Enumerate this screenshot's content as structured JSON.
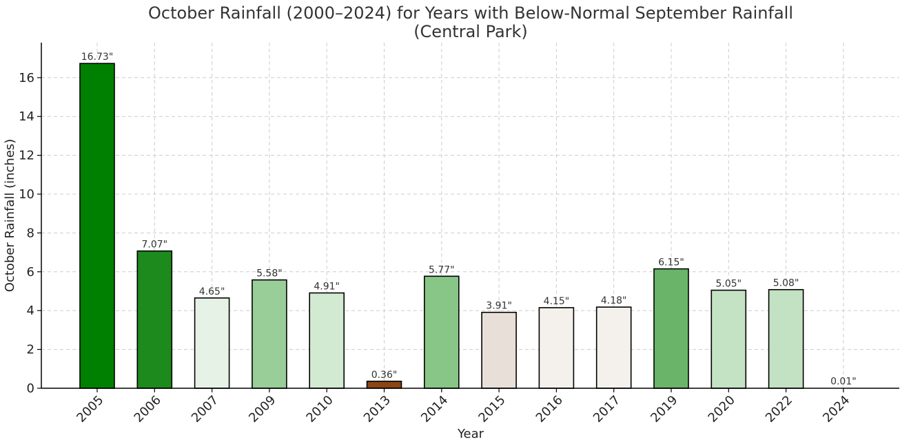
{
  "chart_data": {
    "type": "bar",
    "title": "October Rainfall (2000–2024) for Years with Below-Normal September Rainfall",
    "subtitle": "(Central Park)",
    "xlabel": "Year",
    "ylabel": "October Rainfall (inches)",
    "categories": [
      "2005",
      "2006",
      "2007",
      "2009",
      "2010",
      "2013",
      "2014",
      "2015",
      "2016",
      "2017",
      "2019",
      "2020",
      "2022",
      "2024"
    ],
    "values": [
      16.73,
      7.07,
      4.65,
      5.58,
      4.91,
      0.36,
      5.77,
      3.91,
      4.15,
      4.18,
      6.15,
      5.05,
      5.08,
      0.01
    ],
    "data_labels": [
      "16.73\"",
      "7.07\"",
      "4.65\"",
      "5.58\"",
      "4.91\"",
      "0.36\"",
      "5.77\"",
      "3.91\"",
      "4.15\"",
      "4.18\"",
      "6.15\"",
      "5.05\"",
      "5.08\"",
      "0.01\""
    ],
    "colors": [
      "#008000",
      "#1c8a1c",
      "#e6f2e6",
      "#99ce99",
      "#d2e9d2",
      "#8b4513",
      "#88c688",
      "#e8e0d8",
      "#f4f0eb",
      "#f4f0eb",
      "#69b469",
      "#c4e2c4",
      "#c3e1c3",
      "#ffffff"
    ],
    "ylim": [
      0,
      17.7
    ],
    "yticks": [
      0,
      2,
      4,
      6,
      8,
      10,
      12,
      14,
      16
    ],
    "grid": true,
    "legend": "none"
  }
}
